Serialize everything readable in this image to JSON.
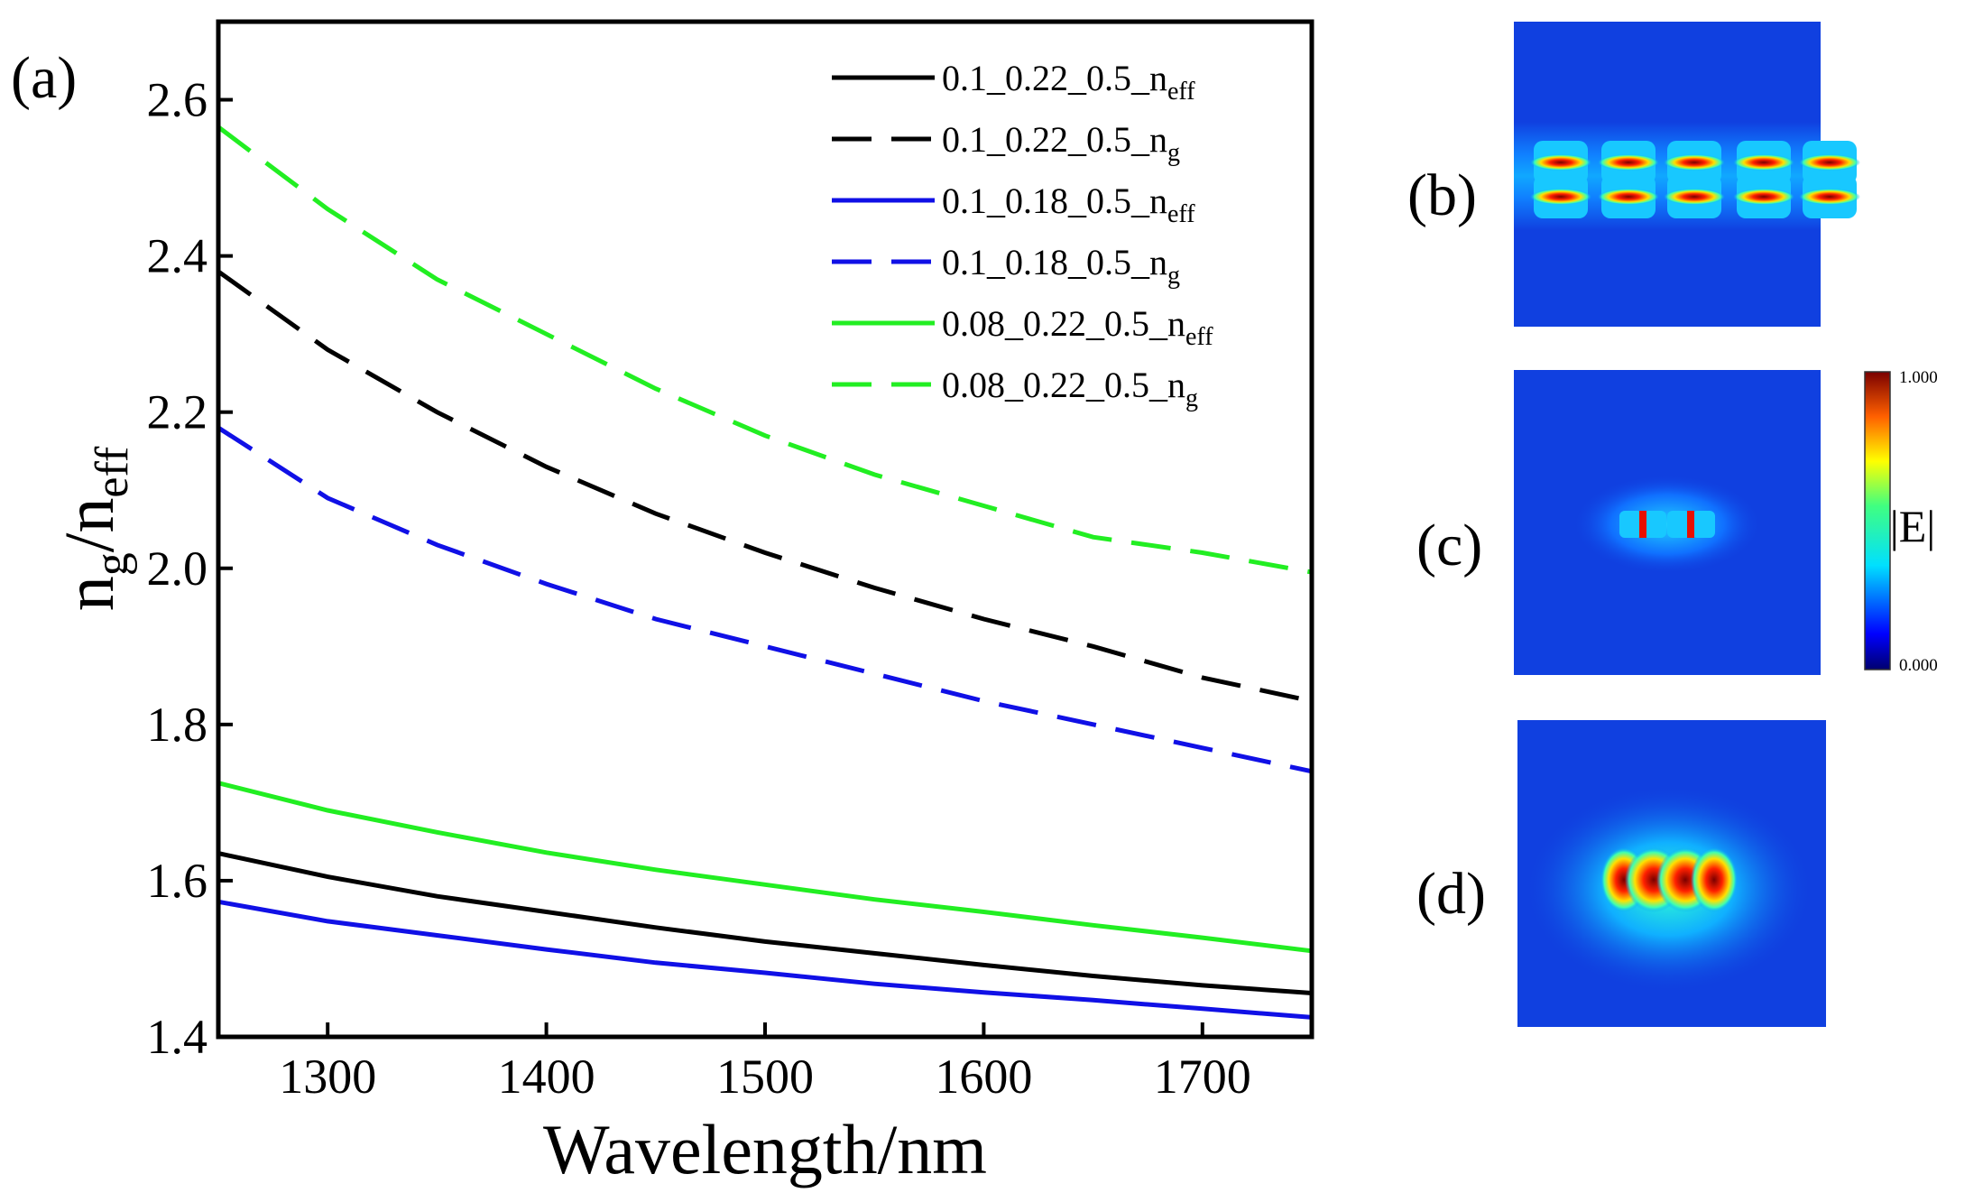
{
  "colors": {
    "black": "#000000",
    "blue": "#1010e6",
    "green": "#22ee22",
    "field_background": "#1040e0"
  },
  "chart_data": {
    "type": "line",
    "panel_label": "(a)",
    "xlabel": "Wavelength/nm",
    "ylabel": {
      "base1": "n",
      "sub1": "g",
      "mid": "/n",
      "sub2": "eff"
    },
    "xlim": [
      1250,
      1750
    ],
    "ylim": [
      1.4,
      2.7
    ],
    "xticks": [
      1300,
      1400,
      1500,
      1600,
      1700
    ],
    "yticks": [
      1.4,
      1.6,
      1.8,
      2.0,
      2.2,
      2.4,
      2.6
    ],
    "ytick_labels": [
      "1.4",
      "1.6",
      "1.8",
      "2.0",
      "2.2",
      "2.4",
      "2.6"
    ],
    "x": [
      1250,
      1300,
      1350,
      1400,
      1450,
      1500,
      1550,
      1600,
      1650,
      1700,
      1750
    ],
    "series": [
      {
        "name": "0.1_0.22_0.5_n",
        "sub": "eff",
        "color": "black",
        "dash": false,
        "values": [
          1.635,
          1.605,
          1.58,
          1.56,
          1.54,
          1.522,
          1.507,
          1.492,
          1.478,
          1.466,
          1.456
        ]
      },
      {
        "name": "0.1_0.22_0.5_n",
        "sub": "g",
        "color": "black",
        "dash": true,
        "values": [
          2.38,
          2.28,
          2.2,
          2.13,
          2.07,
          2.02,
          1.975,
          1.935,
          1.9,
          1.86,
          1.83
        ]
      },
      {
        "name": "0.1_0.18_0.5_n",
        "sub": "eff",
        "color": "blue",
        "dash": false,
        "values": [
          1.573,
          1.548,
          1.53,
          1.512,
          1.495,
          1.482,
          1.468,
          1.457,
          1.447,
          1.436,
          1.425
        ]
      },
      {
        "name": "0.1_0.18_0.5_n",
        "sub": "g",
        "color": "blue",
        "dash": true,
        "values": [
          2.18,
          2.09,
          2.03,
          1.98,
          1.935,
          1.9,
          1.865,
          1.83,
          1.8,
          1.77,
          1.74
        ]
      },
      {
        "name": "0.08_0.22_0.5_n",
        "sub": "eff",
        "color": "green",
        "dash": false,
        "values": [
          1.725,
          1.69,
          1.662,
          1.636,
          1.614,
          1.595,
          1.576,
          1.56,
          1.543,
          1.527,
          1.51
        ]
      },
      {
        "name": "0.08_0.22_0.5_n",
        "sub": "g",
        "color": "green",
        "dash": true,
        "values": [
          2.565,
          2.46,
          2.37,
          2.3,
          2.23,
          2.17,
          2.12,
          2.08,
          2.04,
          2.02,
          1.995
        ]
      }
    ],
    "legend_position": "top-right",
    "grid": false
  },
  "field_panels": [
    {
      "label": "(b)",
      "mode": "slot-array"
    },
    {
      "label": "(c)",
      "mode": "narrow-slots"
    },
    {
      "label": "(d)",
      "mode": "wide-lobes"
    }
  ],
  "colorbar": {
    "max_label": "1.000",
    "min_label": "0.000",
    "title": "|E|"
  }
}
